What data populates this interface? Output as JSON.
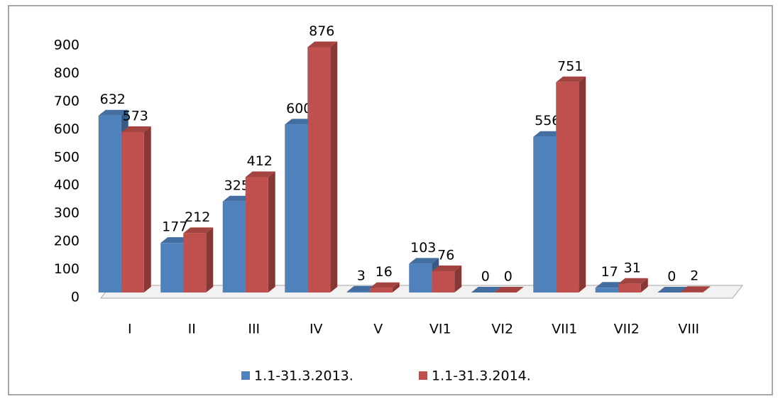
{
  "chart_data": {
    "type": "bar3d",
    "categories": [
      "I",
      "II",
      "III",
      "IV",
      "V",
      "VI1",
      "VI2",
      "VII1",
      "VII2",
      "VIII"
    ],
    "series": [
      {
        "name": "1.1-31.3.2013.",
        "color": "#4f81bd",
        "values": [
          632,
          177,
          325,
          600,
          3,
          103,
          0,
          556,
          17,
          0
        ]
      },
      {
        "name": "1.1-31.3.2014.",
        "color": "#c0504d",
        "values": [
          573,
          212,
          412,
          876,
          16,
          76,
          0,
          751,
          31,
          2
        ]
      }
    ],
    "ylim": [
      0,
      900
    ],
    "yticks": [
      0,
      100,
      200,
      300,
      400,
      500,
      600,
      700,
      800,
      900
    ],
    "grid": false,
    "legend": "bottom"
  }
}
